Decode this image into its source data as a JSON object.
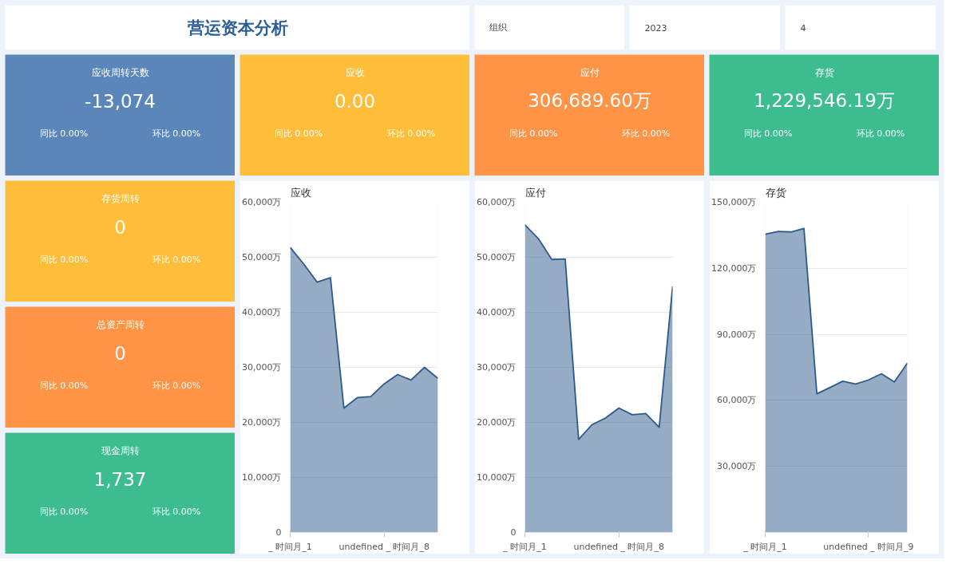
{
  "chart_data": [
    {
      "type": "other",
      "title": "营运资本分析"
    },
    {
      "type": "other",
      "annotations": [
        "组织"
      ]
    },
    {
      "type": "other",
      "annotations": [
        "2023"
      ]
    },
    {
      "type": "other",
      "annotations": [
        "4"
      ]
    },
    {
      "type": "other",
      "title": "应收周转天数",
      "color": "#5a86b9",
      "annotations": [
        "-13,074",
        "同比   0.00%",
        "环比   0.00%"
      ]
    },
    {
      "type": "other",
      "title": "应收",
      "color": "#ffbe3a",
      "annotations": [
        "0.00",
        "同比   0.00%",
        "环比   0.00%"
      ]
    },
    {
      "type": "other",
      "title": "应付",
      "color": "#ff9446",
      "annotations": [
        "306,689.60万",
        "同比   0.00%",
        "环比   0.00%"
      ]
    },
    {
      "type": "other",
      "title": "存货",
      "color": "#3dbd8d",
      "annotations": [
        "1,229,546.19万",
        "同比   0.00%",
        "环比   0.00%"
      ]
    },
    {
      "type": "other",
      "title": "存货周转",
      "color": "#ffbe3a",
      "annotations": [
        "0",
        "同比   0.00%",
        "环比   0.00%"
      ]
    },
    {
      "type": "other",
      "title": "总资产周转",
      "color": "#ff9446",
      "annotations": [
        "0",
        "同比   0.00%",
        "环比   0.00%"
      ]
    },
    {
      "type": "other",
      "title": "现金周转",
      "color": "#3dbd8d",
      "annotations": [
        "1,737",
        "同比   0.00%",
        "环比   0.00%"
      ]
    },
    {
      "type": "area",
      "title": "应收",
      "categories": [
        "_ 时间月_1",
        null,
        null,
        null,
        null,
        null,
        null,
        "undefined _ 时间月_8",
        null,
        null,
        null,
        null
      ],
      "series": [
        {
          "color": "#2d5a8c",
          "values": [
            51800,
            48800,
            45500,
            46300,
            22600,
            24500,
            24700,
            27000,
            28700,
            27700,
            30000,
            28000
          ]
        }
      ],
      "ylim": [
        0,
        60000
      ],
      "yticks": [
        0,
        {
          "value": 10000,
          "label": "10,000万"
        },
        {
          "value": 20000,
          "label": "20,000万"
        },
        {
          "value": 30000,
          "label": "30,000万"
        },
        {
          "value": 40000,
          "label": "40,000万"
        },
        {
          "value": 50000,
          "label": "50,000万"
        },
        {
          "value": 60000,
          "label": "60,000万"
        }
      ],
      "grid": "y"
    },
    {
      "type": "area",
      "title": "应付",
      "categories": [
        "_ 时间月_1",
        null,
        null,
        null,
        null,
        null,
        null,
        "undefined _ 时间月_8",
        null,
        null,
        null,
        null
      ],
      "series": [
        {
          "color": "#2d5a8c",
          "values": [
            55900,
            53400,
            49600,
            49700,
            16900,
            19600,
            20800,
            22600,
            21400,
            21600,
            19100,
            44700
          ]
        }
      ],
      "ylim": [
        0,
        60000
      ],
      "yticks": [
        0,
        {
          "value": 10000,
          "label": "10,000万"
        },
        {
          "value": 20000,
          "label": "20,000万"
        },
        {
          "value": 30000,
          "label": "30,000万"
        },
        {
          "value": 40000,
          "label": "40,000万"
        },
        {
          "value": 50000,
          "label": "50,000万"
        },
        {
          "value": 60000,
          "label": "60,000万"
        }
      ],
      "grid": "y"
    },
    {
      "type": "area",
      "title": "存货",
      "categories": [
        "_ 时间月_1",
        null,
        null,
        null,
        null,
        null,
        null,
        null,
        "undefined _ 时间月_9",
        null,
        null,
        null
      ],
      "series": [
        {
          "color": "#2d5a8c",
          "values": [
            135500,
            136700,
            136500,
            138100,
            63000,
            65800,
            68700,
            67400,
            69300,
            72100,
            68400,
            76900
          ]
        }
      ],
      "ylim": [
        0,
        150000
      ],
      "yticks": [
        {
          "value": 30000,
          "label": "30,000万"
        },
        {
          "value": 60000,
          "label": "60,000万"
        },
        {
          "value": 90000,
          "label": "90,000万"
        },
        {
          "value": 120000,
          "label": "120,000万"
        },
        {
          "value": 150000,
          "label": "150,000万"
        }
      ],
      "grid": "y"
    }
  ]
}
